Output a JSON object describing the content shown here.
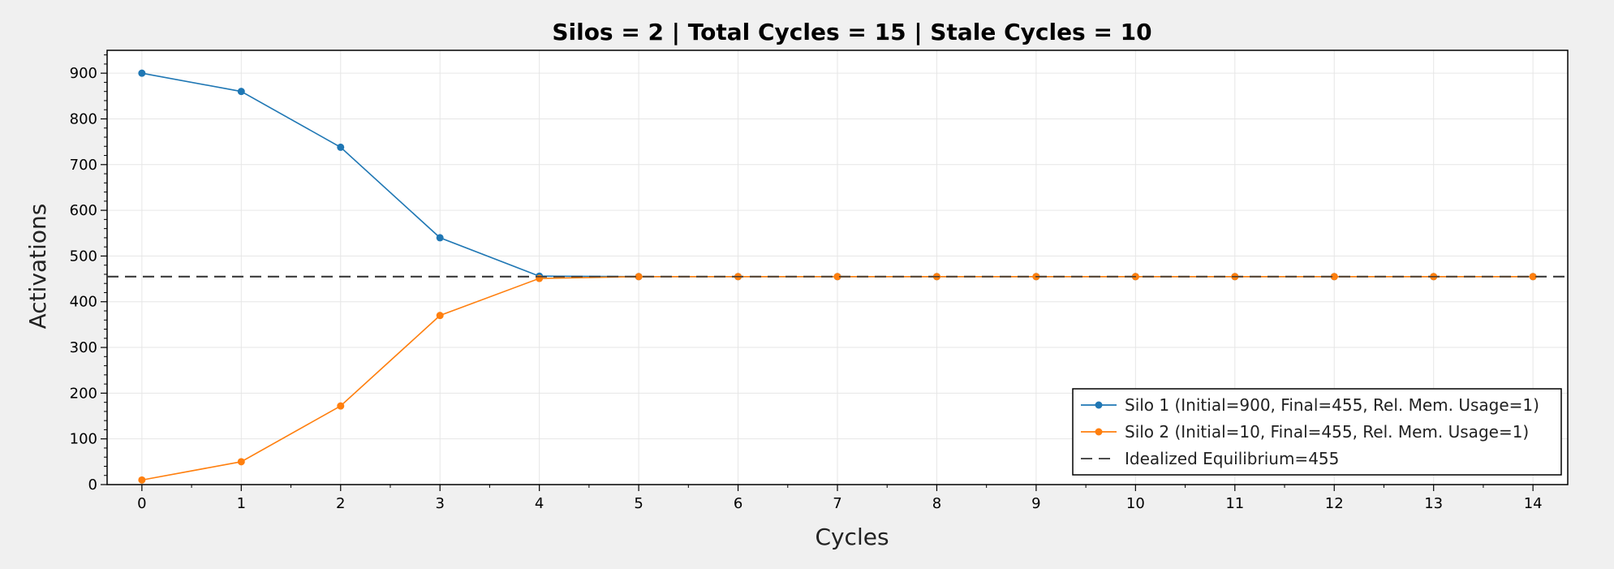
{
  "chart_data": {
    "type": "line",
    "title": "Silos = 2 | Total Cycles = 15 | Stale Cycles = 10",
    "xlabel": "Cycles",
    "ylabel": "Activations",
    "xlim": [
      -0.35,
      14.35
    ],
    "ylim": [
      0,
      950
    ],
    "x": [
      0,
      1,
      2,
      3,
      4,
      5,
      6,
      7,
      8,
      9,
      10,
      11,
      12,
      13,
      14
    ],
    "x_ticks": [
      0,
      1,
      2,
      3,
      4,
      5,
      6,
      7,
      8,
      9,
      10,
      11,
      12,
      13,
      14
    ],
    "y_ticks": [
      0,
      100,
      200,
      300,
      400,
      500,
      600,
      700,
      800,
      900
    ],
    "grid": true,
    "legend_position": "bottom-right",
    "series": [
      {
        "name": "Silo 1 (Initial=900, Final=455, Rel. Mem. Usage=1)",
        "color": "#1f77b4",
        "values": [
          900,
          860,
          738,
          540,
          456,
          455,
          455,
          455,
          455,
          455,
          455,
          455,
          455,
          455,
          455
        ]
      },
      {
        "name": "Silo 2 (Initial=10, Final=455, Rel. Mem. Usage=1)",
        "color": "#ff7f0e",
        "values": [
          10,
          50,
          172,
          370,
          451,
          455,
          455,
          455,
          455,
          455,
          455,
          455,
          455,
          455,
          455
        ]
      }
    ],
    "reference_line": {
      "name": "Idealized Equilibrium=455",
      "value": 455,
      "color": "#333333",
      "style": "dashed"
    }
  }
}
